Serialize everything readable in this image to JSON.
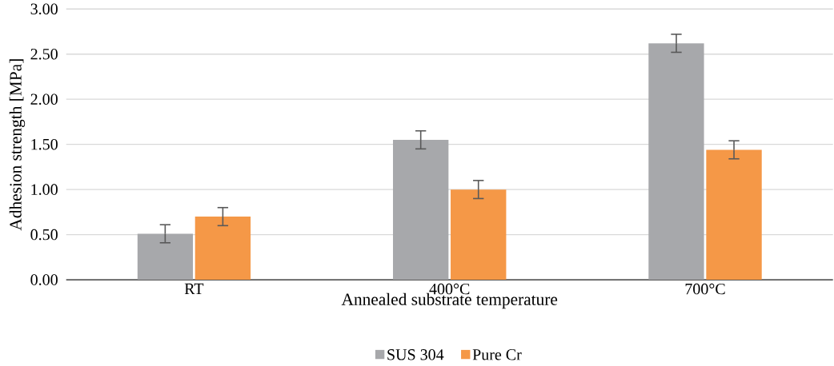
{
  "chart_data": {
    "type": "bar",
    "xlabel": "Annealed substrate temperature",
    "ylabel": "Adhesion strength [MPa]",
    "categories": [
      "RT",
      "400°C",
      "700°C"
    ],
    "series": [
      {
        "name": "SUS 304",
        "color": "#a7a8ab",
        "values": [
          0.51,
          1.55,
          2.62
        ],
        "errors": [
          0.1,
          0.1,
          0.1
        ]
      },
      {
        "name": "Pure Cr",
        "color": "#f59847",
        "values": [
          0.7,
          1.0,
          1.44
        ],
        "errors": [
          0.1,
          0.1,
          0.1
        ]
      }
    ],
    "ylim": [
      0,
      3
    ],
    "yticks": [
      {
        "value": 0,
        "label": "0.00"
      },
      {
        "value": 0.5,
        "label": "0.50"
      },
      {
        "value": 1,
        "label": "1.00"
      },
      {
        "value": 1.5,
        "label": "1.50"
      },
      {
        "value": 2,
        "label": "2.00"
      },
      {
        "value": 2.5,
        "label": "2.50"
      },
      {
        "value": 3,
        "label": "3.00"
      }
    ],
    "grid": "y",
    "legend": "bottom"
  }
}
